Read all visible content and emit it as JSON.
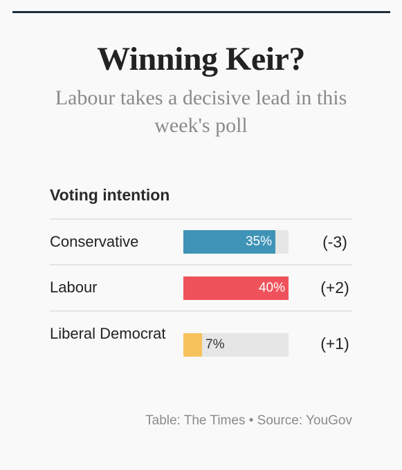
{
  "header": {
    "title": "Winning Keir?",
    "subtitle": "Labour takes a decisive lead in this week's poll"
  },
  "table": {
    "heading": "Voting intention"
  },
  "chart_data": {
    "type": "bar",
    "categories": [
      "Conservative",
      "Labour",
      "Liberal Democrat"
    ],
    "values": [
      35,
      40,
      7
    ],
    "value_labels": [
      "35%",
      "40%",
      "7%"
    ],
    "changes": [
      "(-3)",
      "(+2)",
      "(+1)"
    ],
    "colors": [
      "#3f93b6",
      "#f0525b",
      "#f7c25c"
    ],
    "xlim": [
      0,
      40
    ]
  },
  "footer": {
    "text": "Table: The Times  •  Source: YouGov"
  }
}
